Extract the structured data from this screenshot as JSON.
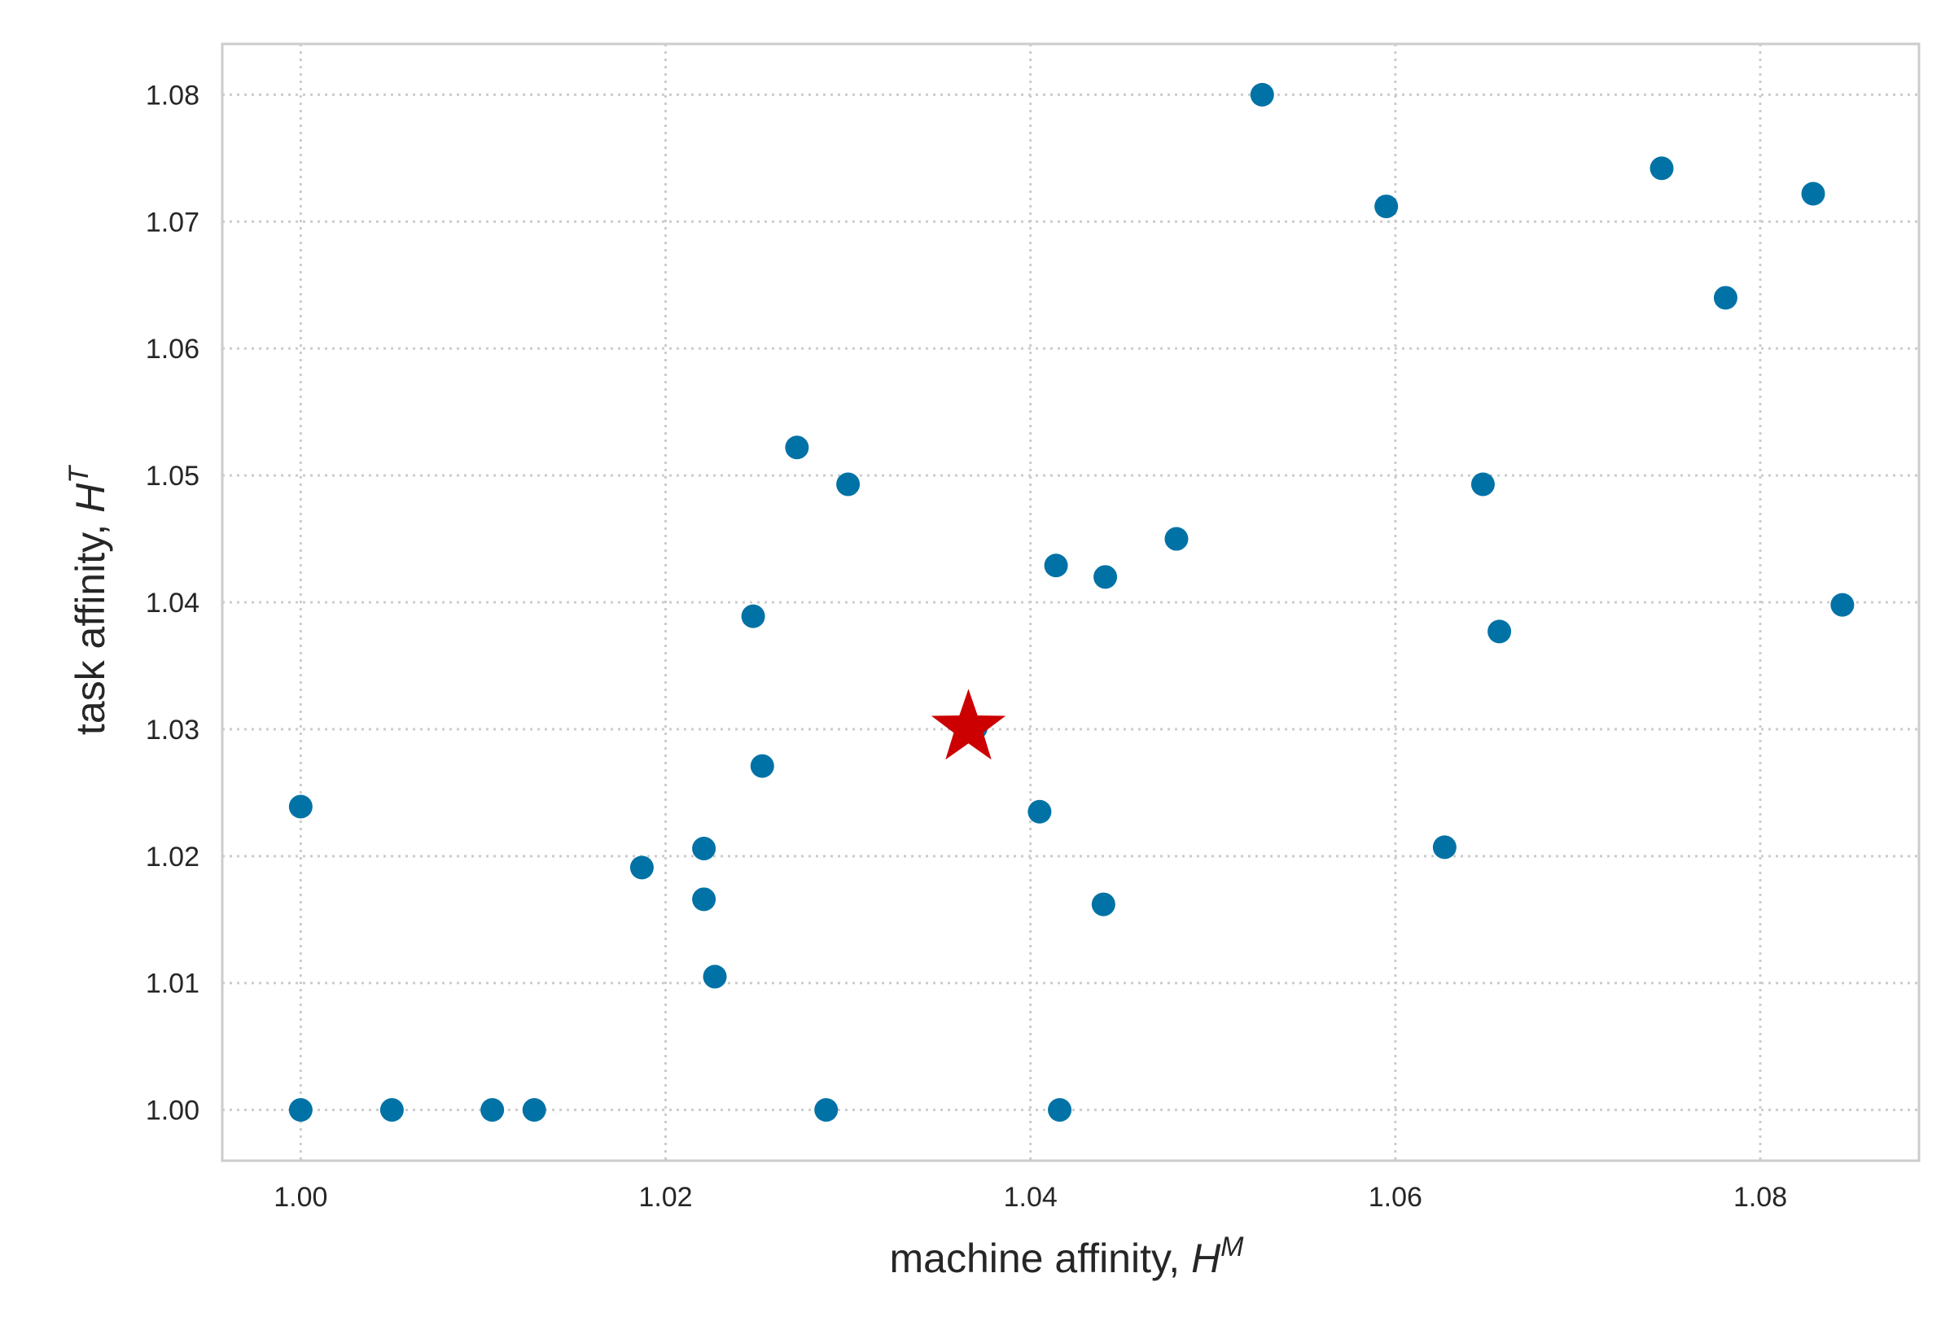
{
  "chart_data": {
    "type": "scatter",
    "xlabel": {
      "text": "machine affinity, ",
      "symbol": "H",
      "sup": "M"
    },
    "ylabel": {
      "text": "task affinity, ",
      "symbol": "H",
      "sup": "T"
    },
    "xlim": [
      0.9957,
      1.0887
    ],
    "ylim": [
      0.996,
      1.084
    ],
    "xticks": [
      1.0,
      1.02,
      1.04,
      1.06,
      1.08
    ],
    "yticks": [
      1.0,
      1.01,
      1.02,
      1.03,
      1.04,
      1.05,
      1.06,
      1.07,
      1.08
    ],
    "grid": true,
    "colors": {
      "points": "#0072a6",
      "highlight": "#cc0000",
      "frame": "#cccccc",
      "grid": "#cccccc",
      "text": "#262626"
    },
    "series": [
      {
        "marker": "circle",
        "x": [
          1.0,
          1.005,
          1.0105,
          1.0128,
          1.0288,
          1.0416,
          1.0,
          1.0187,
          1.0221,
          1.0221,
          1.0227,
          1.0253,
          1.0248,
          1.0272,
          1.03,
          1.0405,
          1.0414,
          1.044,
          1.0441,
          1.048,
          1.037,
          1.0527,
          1.0595,
          1.0627,
          1.0648,
          1.0657,
          1.0746,
          1.0781,
          1.0829,
          1.0845
        ],
        "y": [
          1.0,
          1.0,
          1.0,
          1.0,
          1.0,
          1.0,
          1.0239,
          1.0191,
          1.0206,
          1.0166,
          1.0105,
          1.0271,
          1.0389,
          1.0522,
          1.0493,
          1.0235,
          1.0429,
          1.0162,
          1.042,
          1.045,
          1.0301,
          1.08,
          1.0712,
          1.0207,
          1.0493,
          1.0377,
          1.0742,
          1.064,
          1.0722,
          1.0398
        ]
      },
      {
        "marker": "star",
        "x": [
          1.0366
        ],
        "y": [
          1.0301
        ]
      }
    ]
  }
}
